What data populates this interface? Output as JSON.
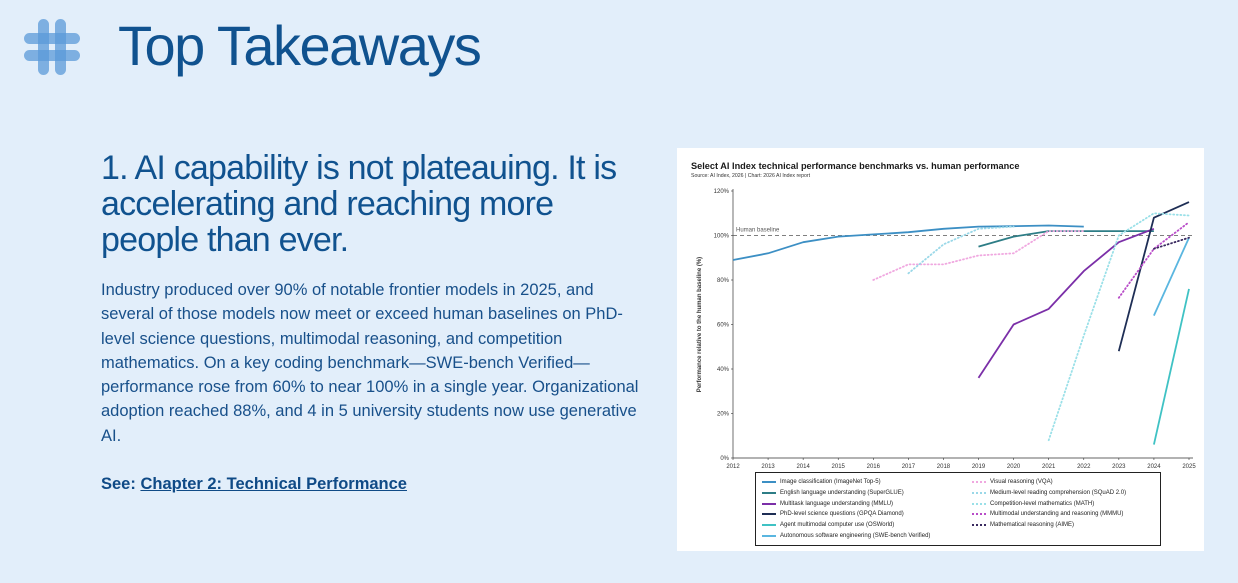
{
  "header": {
    "title": "Top Takeaways",
    "icon": "hash-icon",
    "icon_color": "#5b9ad8"
  },
  "takeaway": {
    "heading": "1. AI capability is not plateauing. It is accelerating and reaching more people than ever.",
    "body": "Industry produced over 90% of notable frontier models in 2025, and several of those models now meet or exceed human baselines on PhD-level science questions, multimodal reasoning, and competition mathematics. On a key coding benchmark—SWE-bench Verified—performance rose from 60% to near 100% in a single year. Organizational adoption reached 88%, and 4 in 5 university students now use generative AI.",
    "see_label": "See:",
    "see_link": "Chapter 2: Technical Performance"
  },
  "chart_data": {
    "type": "line",
    "title": "Select AI Index technical performance benchmarks vs. human performance",
    "source": "Source: AI Index, 2026 | Chart: 2026 AI Index report",
    "ylabel": "Performance relative to the human baseline (%)",
    "xlabel": "",
    "xlim": [
      2012,
      2025
    ],
    "ylim": [
      0,
      120
    ],
    "x_ticks": [
      "2012",
      "2013",
      "2014",
      "2015",
      "2016",
      "2017",
      "2018",
      "2019",
      "2020",
      "2021",
      "2022",
      "2023",
      "2024",
      "2025"
    ],
    "y_ticks": [
      {
        "value": 0,
        "label": "0%"
      },
      {
        "value": 20,
        "label": "20%"
      },
      {
        "value": 40,
        "label": "40%"
      },
      {
        "value": 60,
        "label": "60%"
      },
      {
        "value": 80,
        "label": "80%"
      },
      {
        "value": 100,
        "label": "100%"
      },
      {
        "value": 120,
        "label": "120%"
      }
    ],
    "baseline": {
      "label": "Human baseline",
      "value": 100
    },
    "series": [
      {
        "name": "Image classification (ImageNet Top-5)",
        "color": "#3c8fc4",
        "dash": "solid",
        "points": [
          [
            2012,
            89
          ],
          [
            2013,
            92
          ],
          [
            2014,
            97
          ],
          [
            2015,
            99.5
          ],
          [
            2016,
            100.5
          ],
          [
            2017,
            101.5
          ],
          [
            2018,
            103
          ],
          [
            2019,
            104
          ],
          [
            2020,
            104.2
          ],
          [
            2021,
            104.5
          ],
          [
            2022,
            104
          ]
        ]
      },
      {
        "name": "English language understanding (SuperGLUE)",
        "color": "#2d7d86",
        "dash": "solid",
        "points": [
          [
            2019,
            95
          ],
          [
            2020,
            99.5
          ],
          [
            2021,
            102
          ],
          [
            2022,
            102
          ],
          [
            2023,
            102
          ],
          [
            2024,
            102
          ]
        ]
      },
      {
        "name": "Multitask language understanding (MMLU)",
        "color": "#7b2fa8",
        "dash": "solid",
        "points": [
          [
            2019,
            36
          ],
          [
            2020,
            60
          ],
          [
            2021,
            67
          ],
          [
            2022,
            84
          ],
          [
            2023,
            97
          ],
          [
            2024,
            103
          ]
        ]
      },
      {
        "name": "PhD-level science questions (GPQA Diamond)",
        "color": "#1e2e55",
        "dash": "solid",
        "points": [
          [
            2023,
            48
          ],
          [
            2024,
            108
          ],
          [
            2025,
            115
          ]
        ]
      },
      {
        "name": "Agent multimodal computer use (OSWorld)",
        "color": "#3fc2c4",
        "dash": "solid",
        "points": [
          [
            2024,
            6
          ],
          [
            2025,
            76
          ]
        ]
      },
      {
        "name": "Autonomous software engineering (SWE-bench Verified)",
        "color": "#5ab6e0",
        "dash": "solid",
        "points": [
          [
            2024,
            64
          ],
          [
            2025,
            99
          ]
        ]
      },
      {
        "name": "Visual reasoning (VQA)",
        "color": "#f0a8e0",
        "dash": "dotted",
        "points": [
          [
            2016,
            80
          ],
          [
            2017,
            87
          ],
          [
            2018,
            87
          ],
          [
            2019,
            91
          ],
          [
            2020,
            92
          ],
          [
            2021,
            102
          ],
          [
            2022,
            102
          ]
        ]
      },
      {
        "name": "Medium-level reading comprehension (SQuAD 2.0)",
        "color": "#9ad8e8",
        "dash": "dotted",
        "points": [
          [
            2017,
            83
          ],
          [
            2018,
            96
          ],
          [
            2019,
            103
          ],
          [
            2020,
            104
          ]
        ]
      },
      {
        "name": "Competition-level mathematics (MATH)",
        "color": "#9ae0e8",
        "dash": "dotted",
        "points": [
          [
            2021,
            8
          ],
          [
            2022,
            55
          ],
          [
            2023,
            100
          ],
          [
            2024,
            110
          ],
          [
            2025,
            109
          ]
        ]
      },
      {
        "name": "Multimodal understanding and reasoning (MMMU)",
        "color": "#b84cc8",
        "dash": "dotted",
        "points": [
          [
            2023,
            72
          ],
          [
            2024,
            94
          ],
          [
            2025,
            106
          ]
        ]
      },
      {
        "name": "Mathematical reasoning (AIME)",
        "color": "#3a2a60",
        "dash": "dotted",
        "points": [
          [
            2024,
            94
          ],
          [
            2025,
            99
          ]
        ]
      }
    ]
  }
}
